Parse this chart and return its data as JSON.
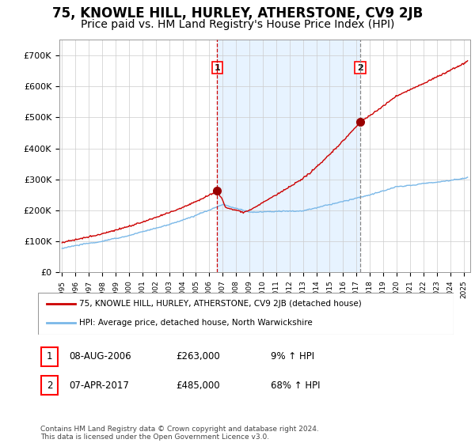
{
  "title": "75, KNOWLE HILL, HURLEY, ATHERSTONE, CV9 2JB",
  "subtitle": "Price paid vs. HM Land Registry's House Price Index (HPI)",
  "title_fontsize": 12,
  "subtitle_fontsize": 10,
  "ylabel_ticks": [
    "£0",
    "£100K",
    "£200K",
    "£300K",
    "£400K",
    "£500K",
    "£600K",
    "£700K"
  ],
  "ytick_values": [
    0,
    100000,
    200000,
    300000,
    400000,
    500000,
    600000,
    700000
  ],
  "ylim": [
    0,
    750000
  ],
  "xlim_start": 1994.8,
  "xlim_end": 2025.5,
  "background_color": "#ffffff",
  "grid_color": "#cccccc",
  "hpi_line_color": "#7ab8e8",
  "price_line_color": "#cc0000",
  "sale1_date": 2006.6,
  "sale1_price": 263000,
  "sale1_label": "1",
  "sale2_date": 2017.27,
  "sale2_price": 485000,
  "sale2_label": "2",
  "vline1_color": "#cc0000",
  "vline2_color": "#888888",
  "marker_color": "#990000",
  "shade_color": "#ddeeff",
  "legend_line1": "75, KNOWLE HILL, HURLEY, ATHERSTONE, CV9 2JB (detached house)",
  "legend_line2": "HPI: Average price, detached house, North Warwickshire",
  "table_row1": [
    "1",
    "08-AUG-2006",
    "£263,000",
    "9% ↑ HPI"
  ],
  "table_row2": [
    "2",
    "07-APR-2017",
    "£485,000",
    "68% ↑ HPI"
  ],
  "footnote": "Contains HM Land Registry data © Crown copyright and database right 2024.\nThis data is licensed under the Open Government Licence v3.0."
}
